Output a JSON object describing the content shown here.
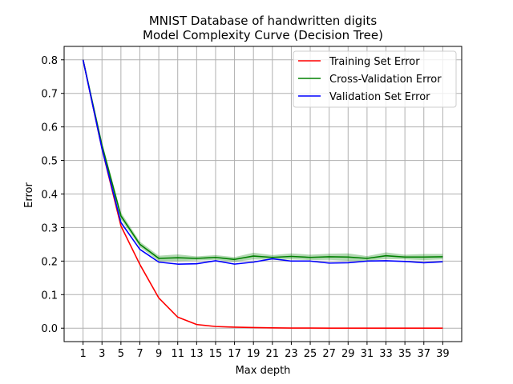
{
  "chart_data": {
    "type": "line",
    "title_lines": [
      "MNIST Database of handwritten digits",
      "Model Complexity Curve (Decision Tree)"
    ],
    "xlabel": "Max depth",
    "ylabel": "Error",
    "x": [
      1,
      3,
      5,
      7,
      9,
      11,
      13,
      15,
      17,
      19,
      21,
      23,
      25,
      27,
      29,
      31,
      33,
      35,
      37,
      39
    ],
    "xticks": [
      1,
      3,
      5,
      7,
      9,
      11,
      13,
      15,
      17,
      19,
      21,
      23,
      25,
      27,
      29,
      31,
      33,
      35,
      37,
      39
    ],
    "yticks": [
      0.0,
      0.1,
      0.2,
      0.3,
      0.4,
      0.5,
      0.6,
      0.7,
      0.8
    ],
    "ytick_labels": [
      "0.0",
      "0.1",
      "0.2",
      "0.3",
      "0.4",
      "0.5",
      "0.6",
      "0.7",
      "0.8"
    ],
    "xlim": [
      -1,
      41
    ],
    "ylim": [
      -0.04,
      0.84
    ],
    "grid": true,
    "legend_position": "top-right",
    "series": [
      {
        "name": "Training Set Error",
        "color": "#ff0000",
        "values": [
          0.8,
          0.535,
          0.305,
          0.19,
          0.09,
          0.033,
          0.011,
          0.005,
          0.003,
          0.002,
          0.001,
          0.0005,
          0.0003,
          0.0002,
          0.0001,
          0.0001,
          0.0001,
          0.0001,
          0.0001,
          0.0001
        ]
      },
      {
        "name": "Cross-Validation Error",
        "color": "#008000",
        "band_color": "#008000",
        "values": [
          0.8,
          0.545,
          0.335,
          0.25,
          0.208,
          0.21,
          0.208,
          0.211,
          0.205,
          0.215,
          0.211,
          0.214,
          0.211,
          0.213,
          0.212,
          0.208,
          0.216,
          0.212,
          0.212,
          0.213
        ],
        "band_lower": [
          0.795,
          0.535,
          0.325,
          0.242,
          0.2,
          0.2,
          0.202,
          0.204,
          0.198,
          0.205,
          0.204,
          0.205,
          0.203,
          0.204,
          0.201,
          0.201,
          0.206,
          0.205,
          0.203,
          0.205
        ],
        "band_upper": [
          0.805,
          0.555,
          0.345,
          0.258,
          0.216,
          0.22,
          0.214,
          0.218,
          0.212,
          0.225,
          0.218,
          0.223,
          0.219,
          0.222,
          0.223,
          0.215,
          0.226,
          0.219,
          0.221,
          0.221
        ]
      },
      {
        "name": "Validation Set Error",
        "color": "#0000ff",
        "values": [
          0.8,
          0.535,
          0.315,
          0.235,
          0.197,
          0.191,
          0.192,
          0.201,
          0.191,
          0.197,
          0.207,
          0.2,
          0.2,
          0.194,
          0.195,
          0.2,
          0.201,
          0.199,
          0.195,
          0.198
        ]
      }
    ]
  }
}
